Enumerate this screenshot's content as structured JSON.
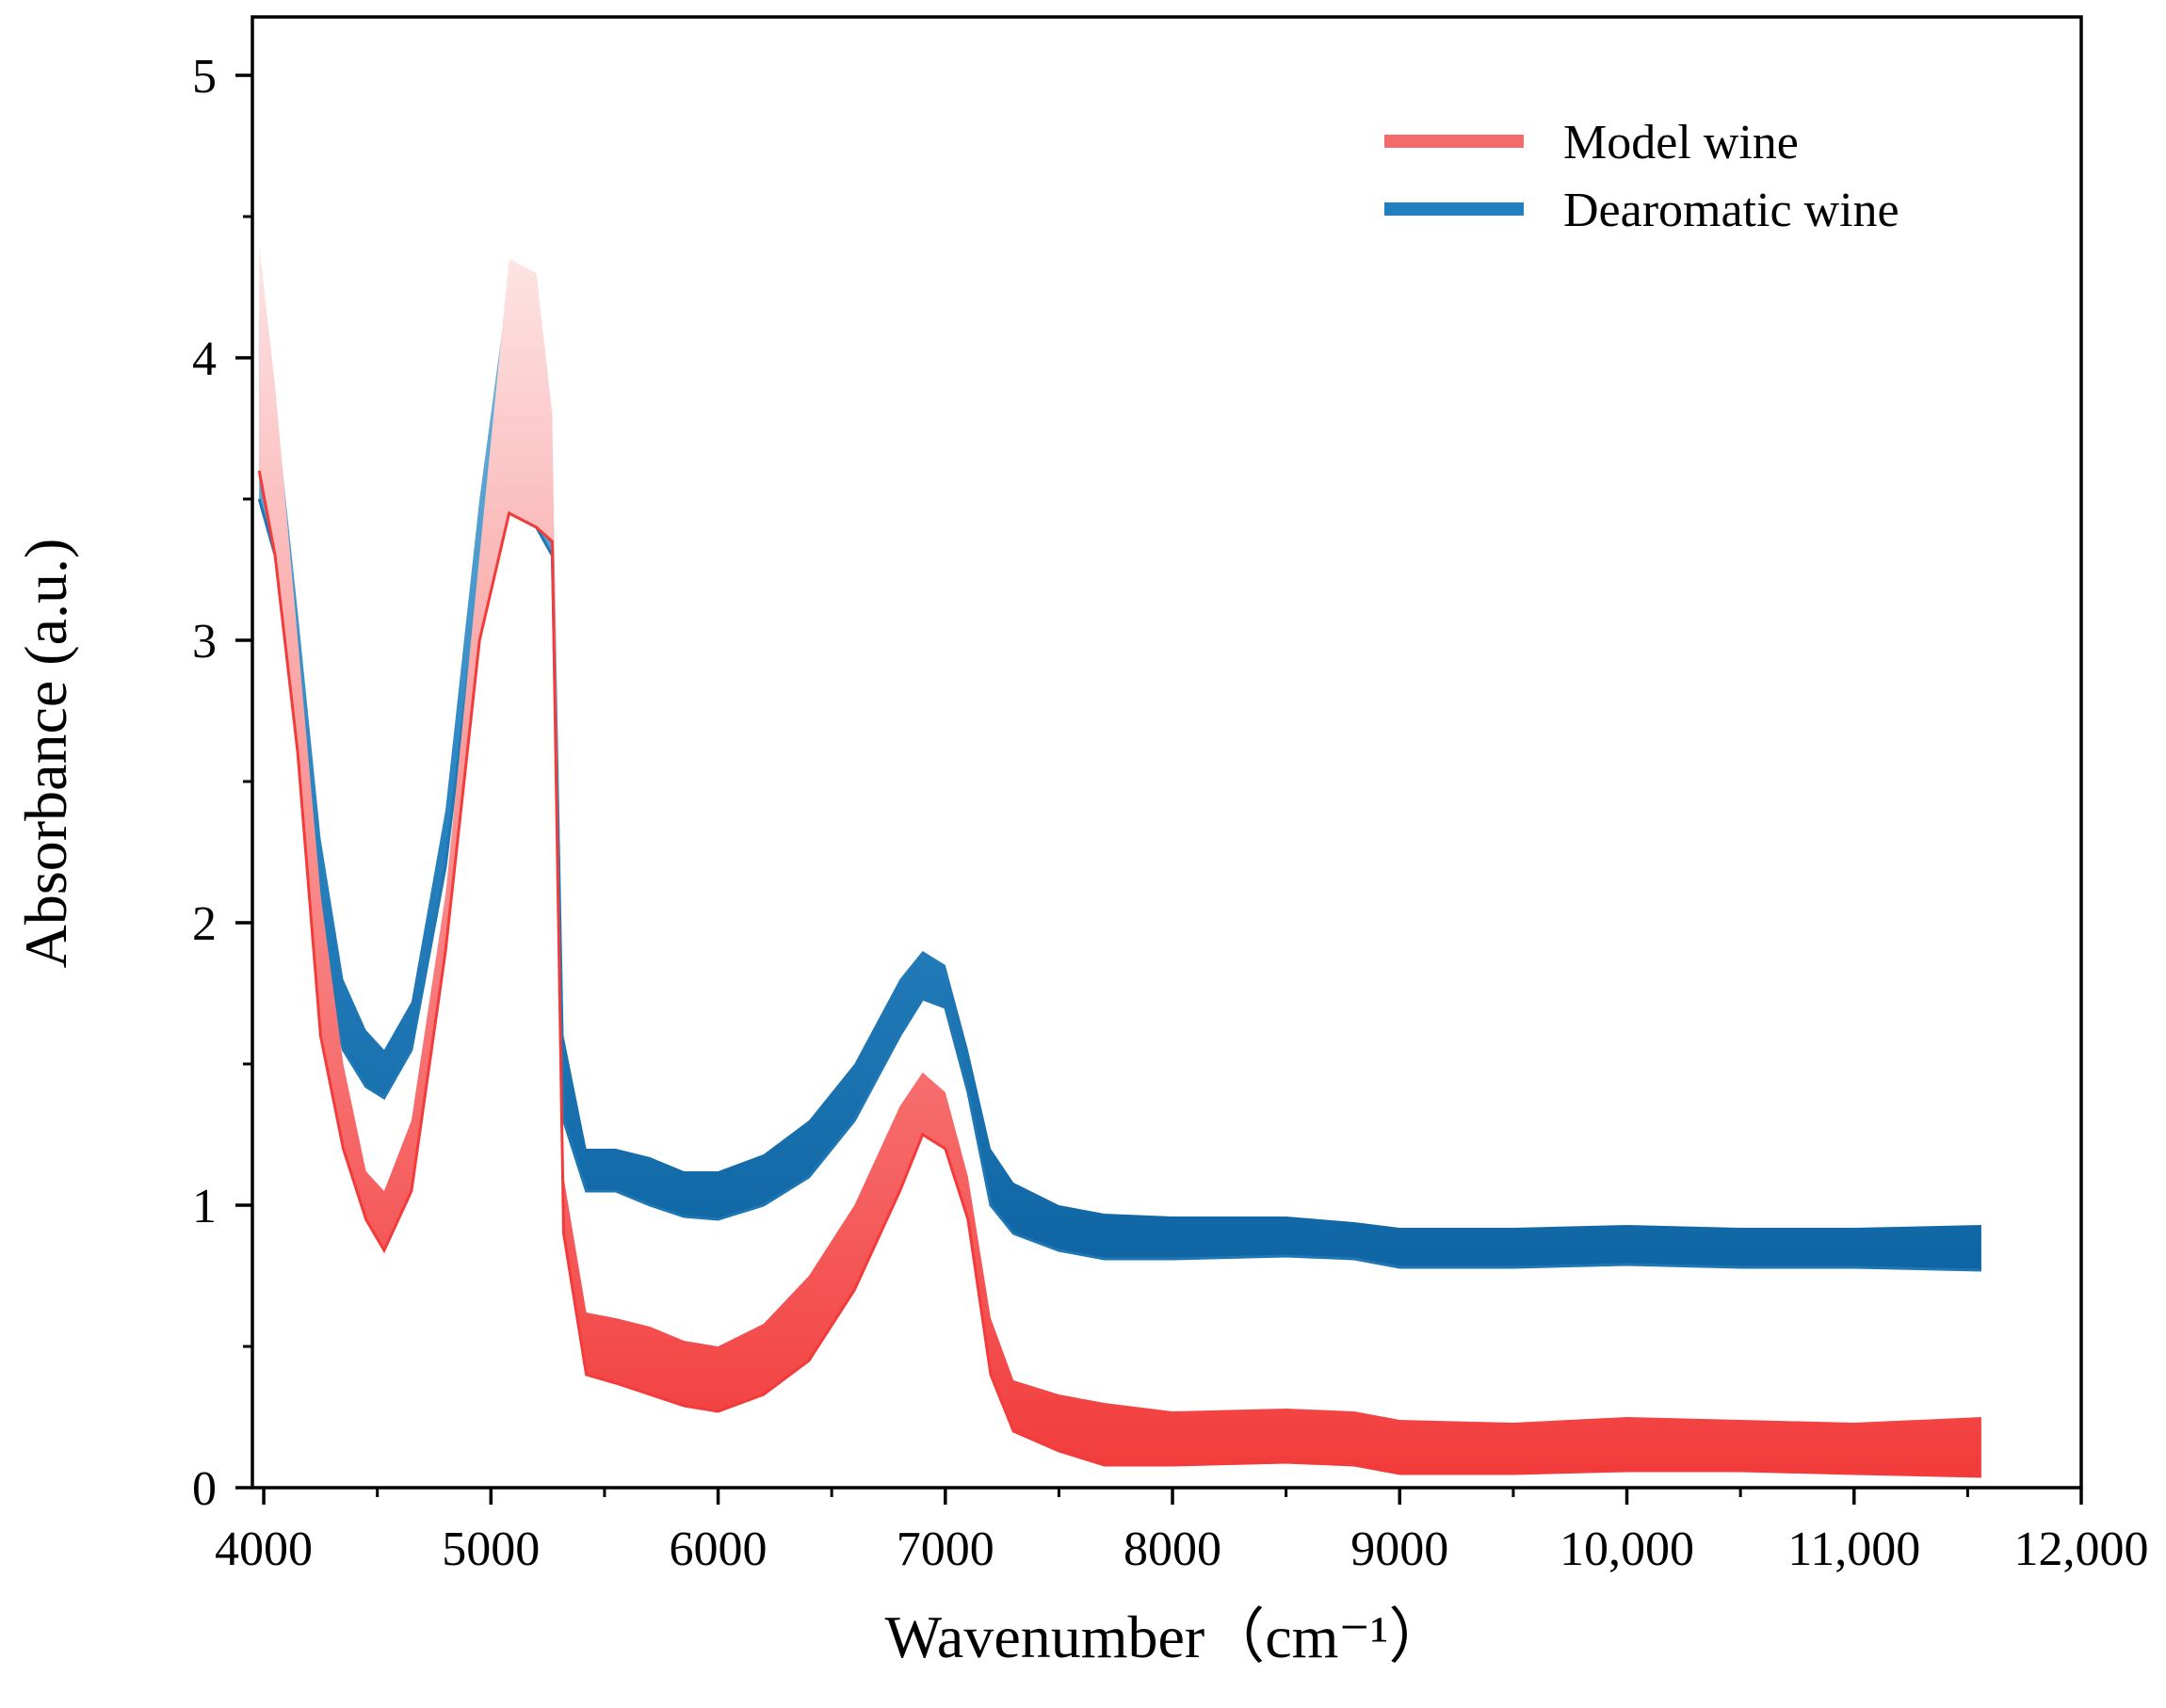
{
  "colors": {
    "model_wine": "#f23b3b",
    "model_wine_light": "#fbd3d3",
    "dearomatic_wine": "#1f78b4",
    "dearomatic_wine_light": "#7ab8dd",
    "axis": "#000000"
  },
  "chart_data": {
    "type": "line",
    "xlabel": "Wavenumber（cm⁻¹）",
    "ylabel": "Absorbance (a.u.)",
    "xlim": [
      3950,
      12000
    ],
    "ylim": [
      0,
      5.2
    ],
    "x_ticks": [
      4000,
      5000,
      6000,
      7000,
      8000,
      9000,
      10000,
      11000,
      12000
    ],
    "x_tick_labels": [
      "4000",
      "5000",
      "6000",
      "7000",
      "8000",
      "9000",
      "10,000",
      "11,000",
      "12,000"
    ],
    "y_ticks": [
      0,
      1,
      2,
      3,
      4,
      5
    ],
    "y_tick_labels": [
      "0",
      "1",
      "2",
      "3",
      "4",
      "5"
    ],
    "legend_position": "top-right",
    "grid": false,
    "series": [
      {
        "name": "Model wine",
        "color_key": "model_wine",
        "x": [
          3980,
          4050,
          4150,
          4250,
          4350,
          4450,
          4530,
          4650,
          4800,
          4950,
          5080,
          5200,
          5270,
          5320,
          5420,
          5550,
          5700,
          5850,
          6000,
          6200,
          6400,
          6600,
          6800,
          6900,
          7000,
          7100,
          7200,
          7300,
          7500,
          7700,
          8000,
          8500,
          8800,
          9000,
          9500,
          10000,
          10500,
          11000,
          11560
        ],
        "upper": [
          4.4,
          3.9,
          3.0,
          2.1,
          1.5,
          1.12,
          1.05,
          1.3,
          2.1,
          3.3,
          4.35,
          4.3,
          3.8,
          1.1,
          0.62,
          0.6,
          0.57,
          0.52,
          0.5,
          0.58,
          0.75,
          1.0,
          1.35,
          1.47,
          1.4,
          1.1,
          0.6,
          0.38,
          0.33,
          0.3,
          0.27,
          0.28,
          0.27,
          0.24,
          0.23,
          0.25,
          0.24,
          0.23,
          0.25
        ],
        "lower": [
          3.6,
          3.3,
          2.6,
          1.6,
          1.2,
          0.95,
          0.84,
          1.05,
          1.9,
          3.0,
          3.45,
          3.4,
          3.35,
          0.9,
          0.4,
          0.37,
          0.33,
          0.29,
          0.27,
          0.33,
          0.45,
          0.7,
          1.05,
          1.25,
          1.2,
          0.95,
          0.4,
          0.2,
          0.13,
          0.08,
          0.08,
          0.09,
          0.08,
          0.05,
          0.05,
          0.06,
          0.06,
          0.05,
          0.04
        ]
      },
      {
        "name": "Dearomatic wine",
        "color_key": "dearomatic_wine",
        "x": [
          3980,
          4050,
          4150,
          4250,
          4350,
          4450,
          4530,
          4650,
          4800,
          4950,
          5080,
          5200,
          5270,
          5320,
          5420,
          5550,
          5700,
          5850,
          6000,
          6200,
          6400,
          6600,
          6800,
          6900,
          7000,
          7100,
          7200,
          7300,
          7500,
          7700,
          8000,
          8500,
          8800,
          9000,
          9500,
          10000,
          10500,
          11000,
          11560
        ],
        "upper": [
          4.15,
          3.85,
          3.1,
          2.3,
          1.8,
          1.62,
          1.55,
          1.72,
          2.4,
          3.5,
          4.28,
          4.15,
          3.7,
          1.6,
          1.2,
          1.2,
          1.17,
          1.12,
          1.12,
          1.18,
          1.3,
          1.5,
          1.8,
          1.9,
          1.85,
          1.55,
          1.2,
          1.08,
          1.0,
          0.97,
          0.96,
          0.96,
          0.94,
          0.92,
          0.92,
          0.93,
          0.92,
          0.92,
          0.93
        ],
        "lower": [
          3.5,
          3.3,
          2.7,
          1.9,
          1.55,
          1.42,
          1.38,
          1.55,
          2.2,
          3.2,
          3.45,
          3.4,
          3.3,
          1.3,
          1.05,
          1.05,
          1.0,
          0.96,
          0.95,
          1.0,
          1.1,
          1.3,
          1.6,
          1.73,
          1.7,
          1.4,
          1.0,
          0.9,
          0.84,
          0.81,
          0.81,
          0.82,
          0.81,
          0.78,
          0.78,
          0.79,
          0.78,
          0.78,
          0.77
        ]
      }
    ]
  }
}
